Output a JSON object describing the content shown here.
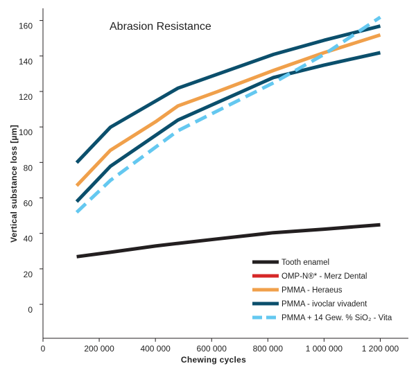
{
  "chart_data": {
    "type": "line",
    "title": "Abrasion Resistance",
    "xlabel": "Chewing cycles",
    "ylabel": "Vertical substance loss [µm]",
    "xlim": [
      0,
      1300000
    ],
    "x_ticks": [
      0,
      200000,
      400000,
      600000,
      800000,
      1000000,
      1200000
    ],
    "x_tick_labels": [
      "0",
      "200 000",
      "400 000",
      "600 000",
      "800 000",
      "1 000 000",
      "1 200 000"
    ],
    "y_ticks": [
      0,
      20,
      40,
      60,
      80,
      100,
      120,
      140,
      160
    ],
    "y_tick_labels": [
      "0",
      "20",
      "40",
      "60",
      "80",
      "100",
      "120",
      "140",
      "160"
    ],
    "grid": false,
    "legend_position": "bottom-right",
    "series": [
      {
        "name": "Tooth enamel",
        "color": "#231f20",
        "dashed": false,
        "x": [
          120000,
          240000,
          400000,
          480000,
          620000,
          820000,
          1000000,
          1200000
        ],
        "y": [
          30,
          32.5,
          36,
          37.5,
          40,
          43.5,
          45.5,
          48
        ]
      },
      {
        "name": "OMP-N®* - Merz Dental",
        "color": "#d62828",
        "dashed": false,
        "legend_only": true,
        "x": [],
        "y": []
      },
      {
        "name": "PMMA - Heraeus",
        "color": "#f0a04b",
        "dashed": false,
        "x": [
          120000,
          240000,
          400000,
          480000,
          620000,
          820000,
          1000000,
          1200000
        ],
        "y": [
          70,
          90,
          106,
          115,
          123,
          135,
          145,
          155
        ]
      },
      {
        "name": "PMMA - ivoclar vivadent",
        "color": "#0b4f6c",
        "dashed": false,
        "x": [
          120000,
          240000,
          480000,
          820000,
          1000000,
          1200000
        ],
        "y": [
          83,
          103,
          125,
          144,
          152,
          160
        ]
      },
      {
        "name": "PMMA - ivoclar vivadent",
        "color": "#0b4f6c",
        "dashed": false,
        "legend_only": false,
        "x": [
          120000,
          240000,
          480000,
          820000,
          1000000,
          1200000
        ],
        "y": [
          61,
          81,
          107,
          131,
          138,
          145
        ]
      },
      {
        "name": "PMMA + 14 Gew. % SiO₂ - Vita",
        "color": "#64c8f0",
        "dashed": true,
        "x": [
          120000,
          240000,
          480000,
          820000,
          1000000,
          1200000
        ],
        "y": [
          55,
          73,
          101,
          128,
          144,
          165
        ]
      }
    ]
  }
}
